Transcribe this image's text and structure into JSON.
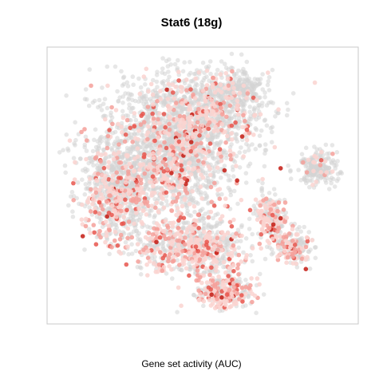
{
  "chart_data": {
    "type": "scatter",
    "title": "Stat6 (18g)",
    "xlabel": "Gene set activity (AUC)",
    "ylabel": "",
    "embedding": "tSNE-like 2D projection of cells",
    "axes_ticks_shown": false,
    "grid": false,
    "legend": "none",
    "xlim": [
      0,
      100
    ],
    "ylim": [
      0,
      100
    ],
    "colors": {
      "inactive": "#d3d3d3",
      "low": "#fad3d0",
      "mid": "#f4a09a",
      "high": "#e8564e",
      "max": "#c41a12",
      "frame": "#c8c8c8"
    },
    "series": [
      {
        "role": "cells",
        "points": [
          {
            "x": 40.2,
            "y": 96.1,
            "a": 0.0
          },
          {
            "x": 29.6,
            "y": 92.4,
            "a": 0.42
          },
          {
            "x": 17.9,
            "y": 78.3,
            "a": 0.28
          },
          {
            "x": 27.0,
            "y": 71.2,
            "a": 0.55
          },
          {
            "x": 20.4,
            "y": 63.0,
            "a": 0.35
          },
          {
            "x": 44.8,
            "y": 71.6,
            "a": 0.62
          },
          {
            "x": 54.6,
            "y": 67.4,
            "a": 0.58
          },
          {
            "x": 60.5,
            "y": 75.3,
            "a": 0.4
          },
          {
            "x": 52.1,
            "y": 80.0,
            "a": 0.72
          },
          {
            "x": 36.6,
            "y": 57.9,
            "a": 0.68
          },
          {
            "x": 39.2,
            "y": 43.3,
            "a": 0.8
          },
          {
            "x": 23.3,
            "y": 49.4,
            "a": 0.6
          },
          {
            "x": 36.1,
            "y": 28.0,
            "a": 0.78
          },
          {
            "x": 47.6,
            "y": 36.8,
            "a": 0.7
          },
          {
            "x": 64.7,
            "y": 54.8,
            "a": 0.74
          },
          {
            "x": 70.6,
            "y": 42.9,
            "a": 0.45
          },
          {
            "x": 69.4,
            "y": 36.3,
            "a": 0.9
          },
          {
            "x": 80.1,
            "y": 29.3,
            "a": 0.5
          },
          {
            "x": 85.1,
            "y": 58.4,
            "a": 0.0
          },
          {
            "x": 94.1,
            "y": 49.3,
            "a": 0.0
          },
          {
            "x": 52.0,
            "y": 22.7,
            "a": 0.72
          },
          {
            "x": 59.0,
            "y": 10.5,
            "a": 0.86
          },
          {
            "x": 48.2,
            "y": 9.8,
            "a": 0.78
          },
          {
            "x": 31.7,
            "y": 10.3,
            "a": 0.3
          },
          {
            "x": 10.8,
            "y": 43.5,
            "a": 0.66
          },
          {
            "x": 14.2,
            "y": 27.7,
            "a": 0.82
          },
          {
            "x": 11.0,
            "y": 13.6,
            "a": 0.2
          },
          {
            "x": 31.1,
            "y": 80.0,
            "a": 0.0
          },
          {
            "x": 65.0,
            "y": 88.0,
            "a": 0.0
          },
          {
            "x": 76.0,
            "y": 79.0,
            "a": 0.0
          },
          {
            "x": 55.0,
            "y": 40.0,
            "a": 0.0
          },
          {
            "x": 28.0,
            "y": 35.0,
            "a": 0.0
          }
        ]
      }
    ]
  }
}
